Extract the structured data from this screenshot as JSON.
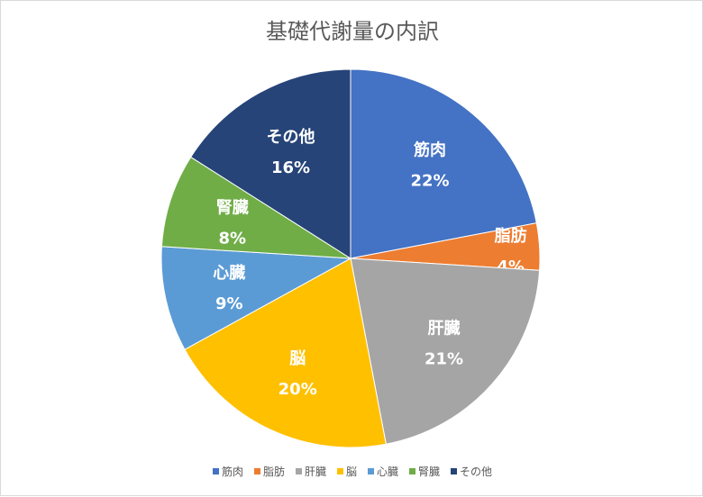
{
  "chart_data": {
    "type": "pie",
    "title": "基礎代謝量の内訳",
    "categories": [
      "筋肉",
      "脂肪",
      "肝臓",
      "脳",
      "心臓",
      "腎臓",
      "その他"
    ],
    "values": [
      22,
      4,
      21,
      20,
      9,
      8,
      16
    ],
    "value_labels": [
      "22%",
      "4%",
      "21%",
      "20%",
      "9%",
      "8%",
      "16%"
    ],
    "colors": [
      "#4472C4",
      "#ED7D31",
      "#A5A5A5",
      "#FFC000",
      "#5B9BD5",
      "#70AD47",
      "#264478"
    ],
    "start": "12 o'clock",
    "direction": "clockwise",
    "legend_position": "bottom"
  }
}
